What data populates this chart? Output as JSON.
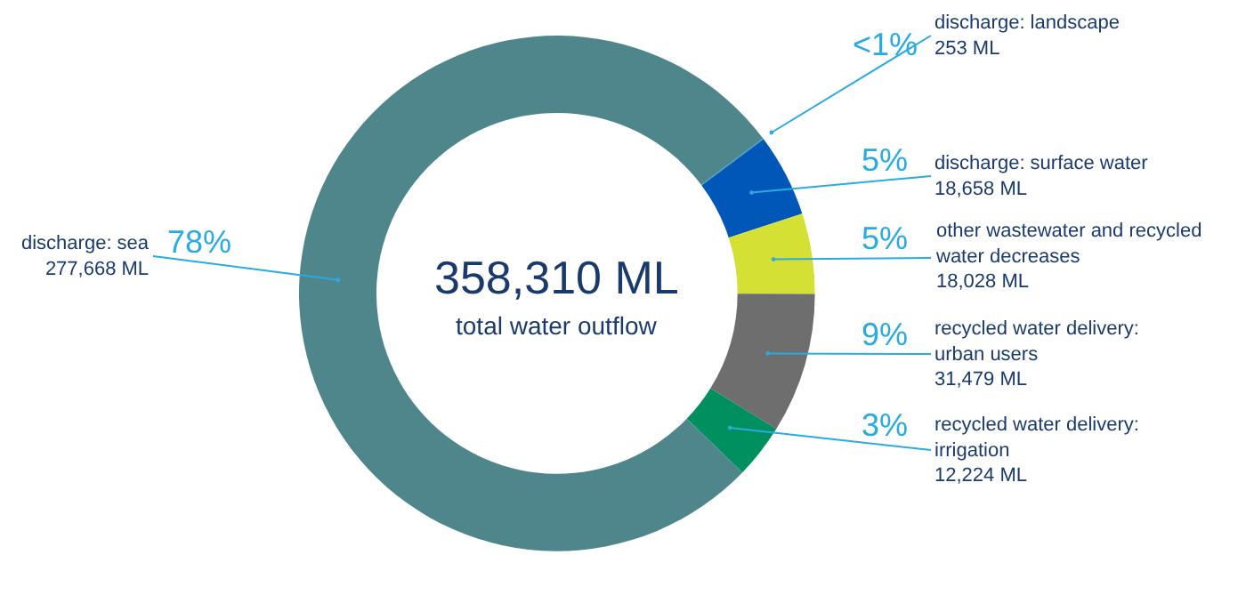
{
  "chart_data": {
    "type": "donut",
    "title": "358,310 ML",
    "subtitle": "total water outflow",
    "categories": [
      "discharge: landscape",
      "discharge: surface water",
      "other wastewater and recycled\nwater decreases",
      "recycled water delivery:\nurban users",
      "recycled water delivery:\nirrigation",
      "discharge: sea"
    ],
    "values": [
      253,
      18658,
      18028,
      31479,
      12224,
      277668
    ],
    "colors": [
      "#1e9bd7",
      "#0057b8",
      "#d4e034",
      "#6e6e6e",
      "#009060",
      "#4e868c"
    ],
    "value_labels": [
      "253 ML",
      "18,658 ML",
      "18,028 ML",
      "31,479 ML",
      "12,224 ML",
      "277,668 ML"
    ],
    "annotations": [
      "<1%",
      "5%",
      "5%",
      "9%",
      "3%",
      "78%"
    ],
    "legend": false
  }
}
